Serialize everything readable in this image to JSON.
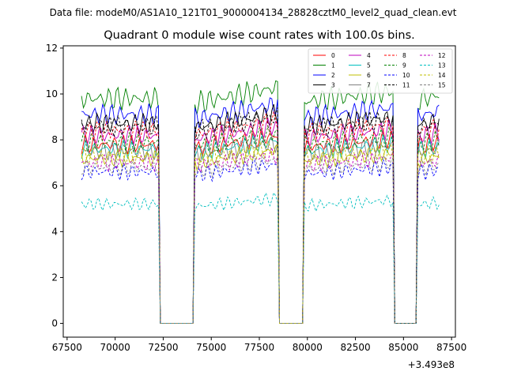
{
  "chart_data": {
    "type": "line",
    "suptitle": "Data file: modeM0/AS1A10_121T01_9000004134_28828cztM0_level2_quad_clean.evt",
    "title": "Quadrant 0 module wise count rates with 100.0s bins.",
    "xlabel": "",
    "ylabel": "",
    "offset_label": "+3.493e8",
    "offset_value": 349300000,
    "xlim": [
      67300,
      87700
    ],
    "ylim": [
      -0.6,
      12.1
    ],
    "x_ticks": [
      67500,
      70000,
      72500,
      75000,
      77500,
      80000,
      82500,
      85000,
      87500
    ],
    "x_tick_labels": [
      "67500",
      "70000",
      "72500",
      "75000",
      "77500",
      "80000",
      "82500",
      "85000",
      "87500"
    ],
    "y_ticks": [
      0,
      2,
      4,
      6,
      8,
      10,
      12
    ],
    "y_tick_labels": [
      "0",
      "2",
      "4",
      "6",
      "8",
      "10",
      "12"
    ],
    "bin_size_s": 100,
    "segments": [
      [
        68250,
        72300
      ],
      [
        74150,
        78450
      ],
      [
        79850,
        84450
      ],
      [
        85750,
        86850
      ]
    ],
    "legend_position": "top-right",
    "series": [
      {
        "name": "0",
        "color": "#ff0000",
        "dash": "solid",
        "mean": 7.8
      },
      {
        "name": "1",
        "color": "#008000",
        "dash": "solid",
        "mean": 9.8
      },
      {
        "name": "2",
        "color": "#0000ff",
        "dash": "solid",
        "mean": 9.1
      },
      {
        "name": "3",
        "color": "#000000",
        "dash": "solid",
        "mean": 8.7
      },
      {
        "name": "4",
        "color": "#bf00bf",
        "dash": "solid",
        "mean": 8.2
      },
      {
        "name": "5",
        "color": "#00bfbf",
        "dash": "solid",
        "mean": 7.6
      },
      {
        "name": "6",
        "color": "#bfbf00",
        "dash": "solid",
        "mean": 7.2
      },
      {
        "name": "7",
        "color": "#808080",
        "dash": "solid",
        "mean": 7.5
      },
      {
        "name": "8",
        "color": "#ff0000",
        "dash": "dashed",
        "mean": 8.4
      },
      {
        "name": "9",
        "color": "#008000",
        "dash": "dashed",
        "mean": 7.9
      },
      {
        "name": "10",
        "color": "#0000ff",
        "dash": "dashed",
        "mean": 6.6
      },
      {
        "name": "11",
        "color": "#000000",
        "dash": "dashed",
        "mean": 8.6
      },
      {
        "name": "12",
        "color": "#bf00bf",
        "dash": "dashed",
        "mean": 7.0
      },
      {
        "name": "13",
        "color": "#00bfbf",
        "dash": "dashed",
        "mean": 5.2
      },
      {
        "name": "14",
        "color": "#bfbf00",
        "dash": "dashed",
        "mean": 7.3
      },
      {
        "name": "15",
        "color": "#808080",
        "dash": "dashed",
        "mean": 6.8
      }
    ]
  }
}
